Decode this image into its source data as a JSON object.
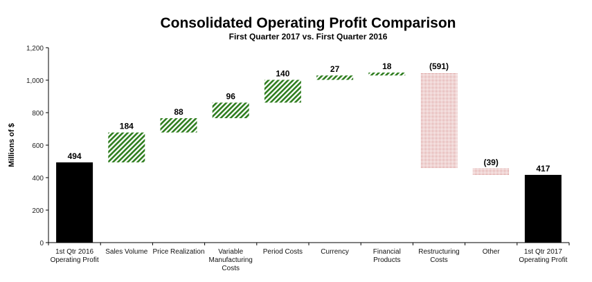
{
  "chart_data": {
    "type": "waterfall",
    "title": "Consolidated Operating Profit Comparison",
    "subtitle": "First Quarter 2017 vs. First Quarter 2016",
    "ylabel": "Millions of $",
    "xlabel": "",
    "ylim": [
      0,
      1200
    ],
    "yticks": [
      0,
      200,
      400,
      600,
      800,
      1000,
      1200
    ],
    "ytick_labels": [
      "0",
      "200",
      "400",
      "600",
      "800",
      "1,000",
      "1,200"
    ],
    "grid": false,
    "categories": [
      [
        "1st Qtr 2016",
        "Operating Profit"
      ],
      [
        "Sales Volume"
      ],
      [
        "Price Realization"
      ],
      [
        "Variable",
        "Manufacturing",
        "Costs"
      ],
      [
        "Period Costs"
      ],
      [
        "Currency"
      ],
      [
        "Financial",
        "Products"
      ],
      [
        "Restructuring",
        "Costs"
      ],
      [
        "Other"
      ],
      [
        "1st Qtr 2017",
        "Operating Profit"
      ]
    ],
    "values": [
      494,
      184,
      88,
      96,
      140,
      27,
      18,
      -591,
      -39,
      417
    ],
    "kinds": [
      "total",
      "delta",
      "delta",
      "delta",
      "delta",
      "delta",
      "delta",
      "delta",
      "delta",
      "total"
    ],
    "data_labels": [
      "494",
      "184",
      "88",
      "96",
      "140",
      "27",
      "18",
      "(591)",
      "(39)",
      "417"
    ],
    "colors": {
      "total": "#000000",
      "increase": "#2e7d1e",
      "decrease": "#c0504d"
    }
  }
}
